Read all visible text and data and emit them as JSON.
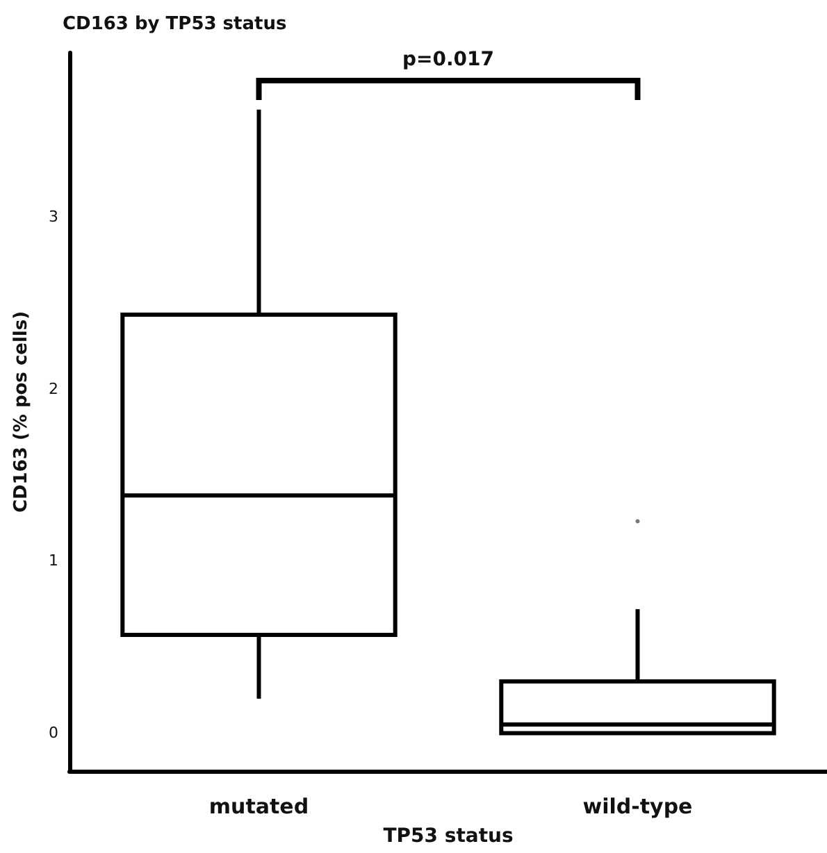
{
  "chart_data": {
    "type": "box",
    "title": "CD163 by TP53 status",
    "xlabel": "TP53 status",
    "ylabel": "CD163 (% pos cells)",
    "categories": [
      "mutated",
      "wild-type"
    ],
    "boxes": [
      {
        "low": 0.2,
        "q1": 0.57,
        "median": 1.38,
        "q3": 2.43,
        "high": 3.62
      },
      {
        "low": 0,
        "q1": 0,
        "median": 0.05,
        "q3": 0.3,
        "high": 0.72,
        "outliers": [
          1.23
        ]
      }
    ],
    "ylim": [
      -0.22,
      3.95
    ],
    "yticks": [
      0,
      1,
      2,
      3
    ],
    "grid": false,
    "annotations": [
      "p=0.017"
    ]
  }
}
